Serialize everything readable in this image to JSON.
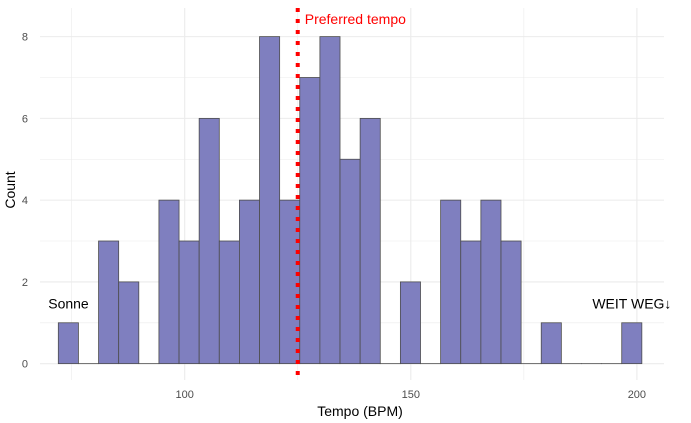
{
  "chart_data": {
    "type": "bar",
    "subtype": "histogram",
    "xlabel": "Tempo (BPM)",
    "ylabel": "Count",
    "xlim": [
      68,
      206
    ],
    "ylim": [
      -0.4,
      8.7
    ],
    "x_ticks": [
      100,
      150,
      200
    ],
    "y_ticks": [
      0,
      2,
      4,
      6,
      8
    ],
    "bin_width": 4.45,
    "bins": [
      {
        "start": 72.05,
        "end": 76.5,
        "count": 1
      },
      {
        "start": 76.5,
        "end": 80.95,
        "count": 0
      },
      {
        "start": 80.95,
        "end": 85.4,
        "count": 3
      },
      {
        "start": 85.4,
        "end": 89.85,
        "count": 2
      },
      {
        "start": 89.85,
        "end": 94.3,
        "count": 0
      },
      {
        "start": 94.3,
        "end": 98.75,
        "count": 4
      },
      {
        "start": 98.75,
        "end": 103.2,
        "count": 3
      },
      {
        "start": 103.2,
        "end": 107.65,
        "count": 6
      },
      {
        "start": 107.65,
        "end": 112.1,
        "count": 3
      },
      {
        "start": 112.1,
        "end": 116.55,
        "count": 4
      },
      {
        "start": 116.55,
        "end": 121.0,
        "count": 8
      },
      {
        "start": 121.0,
        "end": 125.45,
        "count": 4
      },
      {
        "start": 125.45,
        "end": 129.9,
        "count": 7
      },
      {
        "start": 129.9,
        "end": 134.35,
        "count": 8
      },
      {
        "start": 134.35,
        "end": 138.8,
        "count": 5
      },
      {
        "start": 138.8,
        "end": 143.25,
        "count": 6
      },
      {
        "start": 143.25,
        "end": 147.7,
        "count": 0
      },
      {
        "start": 147.7,
        "end": 152.15,
        "count": 2
      },
      {
        "start": 152.15,
        "end": 156.6,
        "count": 0
      },
      {
        "start": 156.6,
        "end": 161.05,
        "count": 4
      },
      {
        "start": 161.05,
        "end": 165.5,
        "count": 3
      },
      {
        "start": 165.5,
        "end": 169.95,
        "count": 4
      },
      {
        "start": 169.95,
        "end": 174.4,
        "count": 3
      },
      {
        "start": 174.4,
        "end": 178.85,
        "count": 0
      },
      {
        "start": 178.85,
        "end": 183.3,
        "count": 1
      },
      {
        "start": 183.3,
        "end": 187.75,
        "count": 0
      },
      {
        "start": 187.75,
        "end": 192.2,
        "count": 0
      },
      {
        "start": 192.2,
        "end": 196.65,
        "count": 0
      },
      {
        "start": 196.65,
        "end": 201.1,
        "count": 1
      }
    ],
    "reference_line": {
      "x": 125,
      "label": "Preferred tempo",
      "color": "#ff0000"
    },
    "annotations": [
      {
        "text": "Sonne",
        "x": 74.3,
        "y": 1.35
      },
      {
        "text": "WEIT WEG↓",
        "x": 198.9,
        "y": 1.35
      }
    ],
    "bar_fill": "#7f7fbf",
    "bar_stroke": "#4d4d4d",
    "grid": true,
    "grid_color": "#ebebeb"
  }
}
